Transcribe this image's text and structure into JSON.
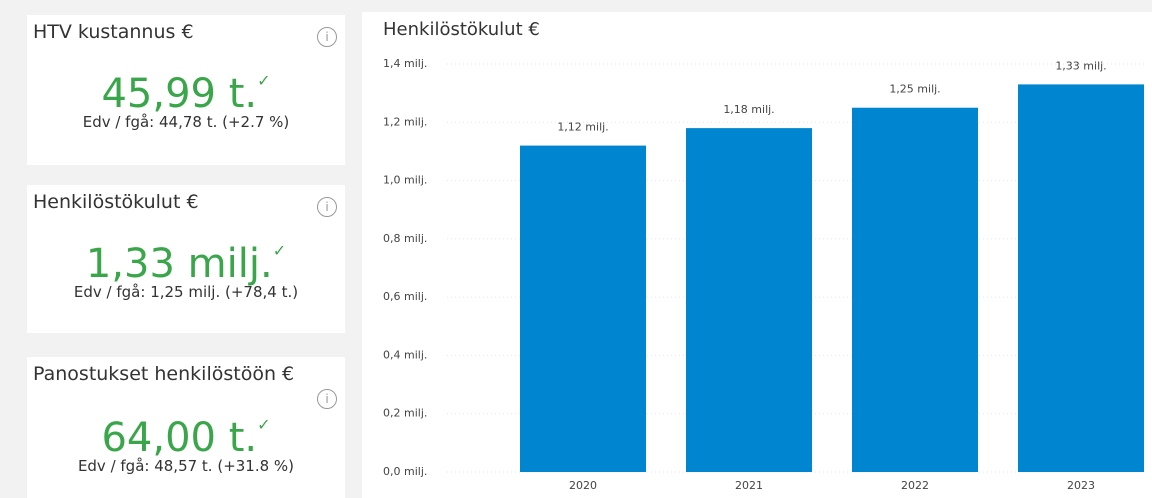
{
  "cards": [
    {
      "title": "HTV kustannus €",
      "value": "45,99 t.",
      "comparison": "Edv / fgå: 44,78 t. (+2.7 %)"
    },
    {
      "title": "Henkilöstökulut €",
      "value": "1,33 milj.",
      "comparison": "Edv / fgå: 1,25 milj. (+78,4 t.)"
    },
    {
      "title": "Panostukset henkilöstöön €",
      "value": "64,00 t.",
      "comparison": "Edv / fgå: 48,57 t. (+31.8 %)"
    }
  ],
  "chart_data": {
    "type": "bar",
    "title": "Henkilöstökulut €",
    "categories": [
      "2020",
      "2021",
      "2022",
      "2023"
    ],
    "values": [
      1.12,
      1.18,
      1.25,
      1.33
    ],
    "value_labels": [
      "1,12 milj.",
      "1,18 milj.",
      "1,25 milj.",
      "1,33 milj."
    ],
    "color": "#0085d0",
    "ylim": [
      0,
      1.4
    ],
    "yticks": [
      {
        "value": 0,
        "label": "0,0 milj."
      },
      {
        "value": 0.2,
        "label": "0,2 milj."
      },
      {
        "value": 0.4,
        "label": "0,4 milj."
      },
      {
        "value": 0.6,
        "label": "0,6 milj."
      },
      {
        "value": 0.8,
        "label": "0,8 milj."
      },
      {
        "value": 1.0,
        "label": "1,0 milj."
      },
      {
        "value": 1.2,
        "label": "1,2 milj."
      },
      {
        "value": 1.4,
        "label": "1,4 milj."
      }
    ],
    "grid": true
  }
}
